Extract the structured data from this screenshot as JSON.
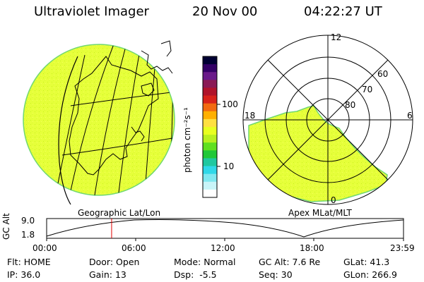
{
  "header": {
    "title": "Ultraviolet Imager",
    "date": "20 Nov 00",
    "time": "04:22:27 UT"
  },
  "colorbar": {
    "unit_label": "photon cm⁻²s⁻¹",
    "ticks": [
      "100",
      "10"
    ],
    "colors": [
      "#000033",
      "#330066",
      "#6a1a8a",
      "#8a1a55",
      "#b0132a",
      "#d8221a",
      "#f26a10",
      "#ffb000",
      "#ffe040",
      "#e8ff20",
      "#b8f020",
      "#60e020",
      "#20c838",
      "#20c8a0",
      "#30d8e8",
      "#80e8f0",
      "#c8f4f8",
      "#ffffff"
    ]
  },
  "geo_map": {
    "label": "Geographic Lat/Lon",
    "fill_color": "#e6ff3a"
  },
  "polar_map": {
    "label": "Apex MLat/MLT",
    "mlt_labels": {
      "top": "12",
      "left": "18",
      "right": "6",
      "bottom": "0"
    },
    "lat_labels": [
      "60",
      "70",
      "80"
    ]
  },
  "timeline": {
    "axis_title": "GC Alt",
    "y_labels": [
      "9.0",
      "1.8"
    ],
    "x_labels": [
      "00:00",
      "06:00",
      "12:00",
      "18:00",
      "23:59"
    ],
    "marker_time": "04:22"
  },
  "info": {
    "row1": {
      "flt_label": "Flt:",
      "flt": "HOME",
      "door_label": "Door:",
      "door": "Open",
      "mode_label": "Mode:",
      "mode": "Normal",
      "gcalt_label": "GC Alt:",
      "gcalt": "7.6 Re",
      "glat_label": "GLat:",
      "glat": "41.3"
    },
    "row2": {
      "ip_label": "IP:",
      "ip": "36.0",
      "gain_label": "Gain:",
      "gain": "13",
      "dsp_label": "Dsp:",
      "dsp": "-5.5",
      "seq_label": "Seq:",
      "seq": "30",
      "glon_label": "GLon:",
      "glon": "266.9"
    }
  }
}
